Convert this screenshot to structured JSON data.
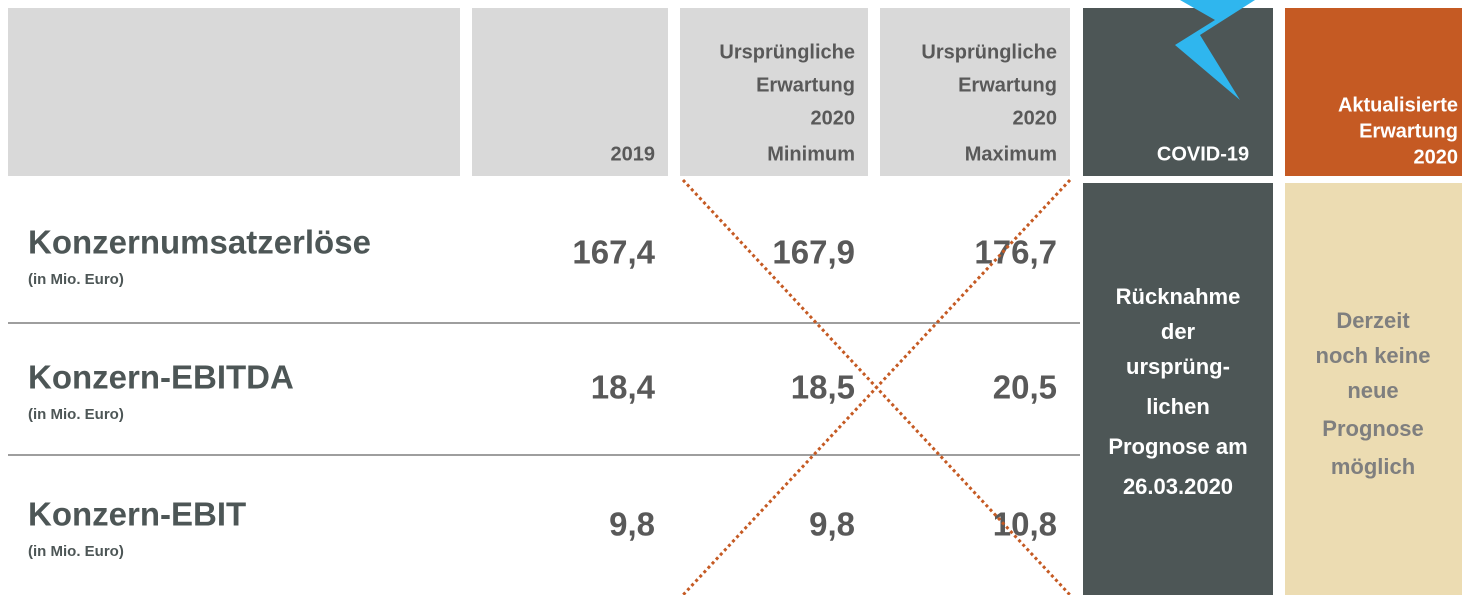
{
  "header": {
    "cells": [
      [
        "2019"
      ],
      [
        "Ursprüngliche",
        "Erwartung",
        "2020",
        "Minimum"
      ],
      [
        "Ursprüngliche",
        "Erwartung",
        "2020",
        "Maximum"
      ],
      [
        "COVID-19"
      ],
      [
        "Aktualisierte",
        "Erwartung",
        "2020"
      ]
    ]
  },
  "table": {
    "rows": [
      {
        "label": "Konzernumsatzerlöse",
        "sublabel": "(in Mio. Euro)",
        "values": [
          "167,4",
          "167,9",
          "176,7"
        ]
      },
      {
        "label": "Konzern-EBITDA",
        "sublabel": "(in Mio. Euro)",
        "values": [
          "18,4",
          "18,5",
          "20,5"
        ]
      },
      {
        "label": "Konzern-EBIT",
        "sublabel": "(in Mio. Euro)",
        "values": [
          "9,8",
          "9,8",
          "10,8"
        ]
      }
    ]
  },
  "covid_note": [
    "Rücknahme",
    "der",
    "ursprüng-",
    "lichen",
    "Prognose am",
    "26.03.2020"
  ],
  "update_note": [
    "Derzeit",
    "noch keine",
    "neue",
    "Prognose",
    "möglich"
  ]
}
